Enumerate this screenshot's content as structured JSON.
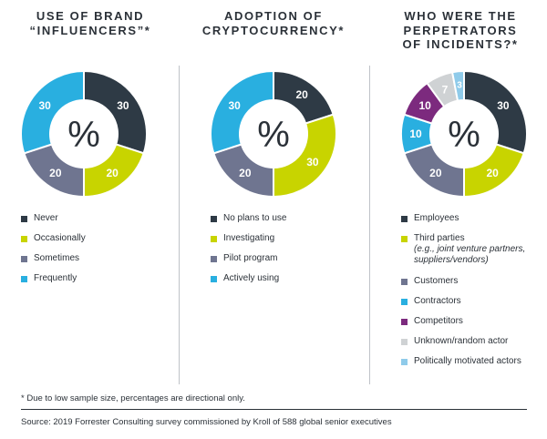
{
  "colors": {
    "charcoal": "#2e3a45",
    "lime": "#c8d400",
    "slate": "#6f7590",
    "sky": "#29afe0",
    "purple": "#7c2a7e",
    "lightgray": "#cfd2d4",
    "lightblue": "#8fcbea",
    "center_symbol": "#2b3138"
  },
  "center_symbol": "%",
  "chart_data": [
    {
      "type": "pie",
      "title_lines": [
        "USE OF BRAND",
        "“INFLUENCERS”*"
      ],
      "center": "%",
      "categories": [
        "Never",
        "Occasionally",
        "Sometimes",
        "Frequently"
      ],
      "values": [
        30,
        20,
        20,
        30
      ],
      "value_labels": [
        "30",
        "20",
        "20",
        "30"
      ],
      "colors": [
        "#2e3a45",
        "#c8d400",
        "#6f7590",
        "#29afe0"
      ],
      "legend_notes": [
        "",
        "",
        "",
        ""
      ]
    },
    {
      "type": "pie",
      "title_lines": [
        "ADOPTION OF",
        "CRYPTOCURRENCY*"
      ],
      "center": "%",
      "categories": [
        "No plans to use",
        "Investigating",
        "Pilot program",
        "Actively using"
      ],
      "values": [
        20,
        30,
        20,
        30
      ],
      "value_labels": [
        "20",
        "30",
        "20",
        "30"
      ],
      "colors": [
        "#2e3a45",
        "#c8d400",
        "#6f7590",
        "#29afe0"
      ],
      "legend_notes": [
        "",
        "",
        "",
        ""
      ]
    },
    {
      "type": "pie",
      "title_lines": [
        "WHO WERE THE",
        "PERPETRATORS",
        "OF INCIDENTS?*"
      ],
      "center": "%",
      "categories": [
        "Employees",
        "Third parties",
        "Customers",
        "Contractors",
        "Competitors",
        "Unknown/random actor",
        "Politically motivated actors"
      ],
      "values": [
        30,
        20,
        20,
        10,
        10,
        7,
        3
      ],
      "value_labels": [
        "30",
        "20",
        "20",
        "10",
        "10",
        "7",
        "3"
      ],
      "colors": [
        "#2e3a45",
        "#c8d400",
        "#6f7590",
        "#29afe0",
        "#7c2a7e",
        "#cfd2d4",
        "#8fcbea"
      ],
      "legend_notes": [
        "",
        "(e.g., joint venture partners, suppliers/vendors)",
        "",
        "",
        "",
        "",
        ""
      ]
    }
  ],
  "footnote": "* Due to low sample size, percentages are directional only.",
  "source": "Source: 2019 Forrester Consulting survey commissioned by Kroll of 588 global senior executives"
}
